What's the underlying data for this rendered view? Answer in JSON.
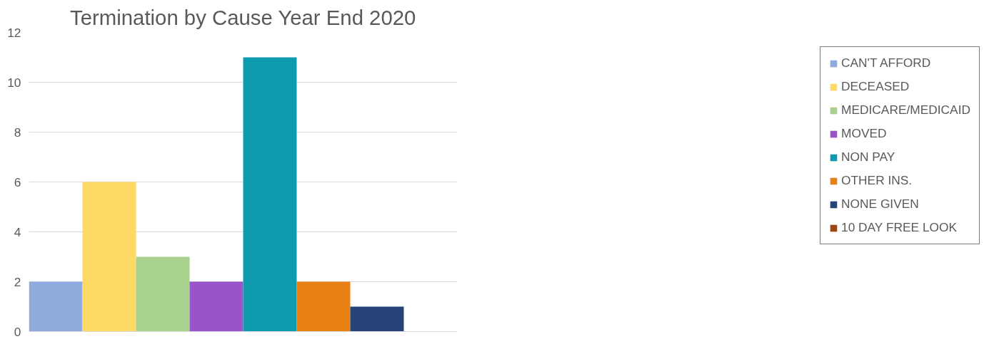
{
  "chart_data": {
    "type": "bar",
    "title": "Termination by Cause Year End 2020",
    "categories": [
      null
    ],
    "series": [
      {
        "name": "CAN'T AFFORD",
        "color": "#8faadc",
        "values": [
          2
        ]
      },
      {
        "name": "DECEASED",
        "color": "#ffd966",
        "values": [
          6
        ]
      },
      {
        "name": "MEDICARE/MEDICAID",
        "color": "#a9d18e",
        "values": [
          3
        ]
      },
      {
        "name": "MOVED",
        "color": "#9954cc",
        "values": [
          2
        ]
      },
      {
        "name": "NON PAY",
        "color": "#0e9bb0",
        "values": [
          11
        ]
      },
      {
        "name": "OTHER INS.",
        "color": "#e98014",
        "values": [
          2
        ]
      },
      {
        "name": "NONE GIVEN",
        "color": "#264478",
        "values": [
          1
        ]
      },
      {
        "name": "10 DAY FREE LOOK",
        "color": "#9e480e",
        "values": [
          0
        ]
      }
    ],
    "ylim": [
      0,
      12
    ],
    "yticks": [
      0,
      2,
      4,
      6,
      8,
      10,
      12
    ],
    "grid": "y",
    "legend": "right"
  }
}
